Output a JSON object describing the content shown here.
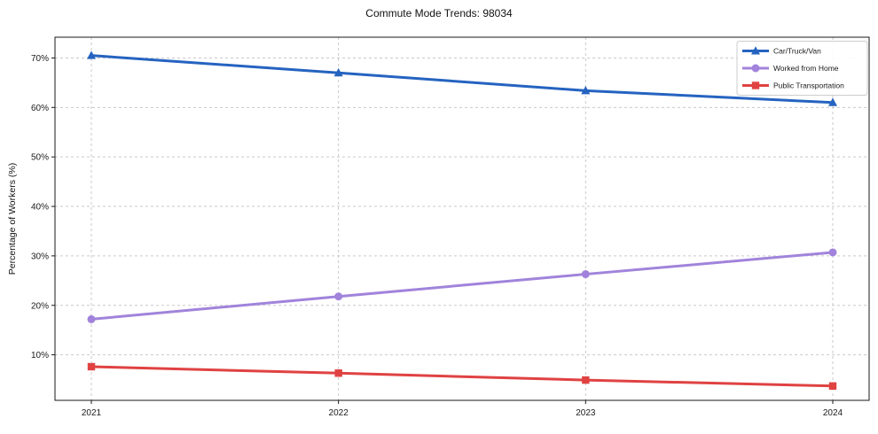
{
  "chart_data": {
    "type": "line",
    "title": "Commute Mode Trends: 98034",
    "xlabel": "",
    "ylabel": "Percentage of Workers (%)",
    "categories": [
      "2021",
      "2022",
      "2023",
      "2024"
    ],
    "series": [
      {
        "name": "Car/Truck/Van",
        "color": "#2563c0",
        "marker": "triangle",
        "values": [
          70.5,
          67.0,
          63.4,
          61.0
        ]
      },
      {
        "name": "Worked from Home",
        "color": "#a183db",
        "marker": "circle",
        "values": [
          17.2,
          21.8,
          26.3,
          30.7
        ]
      },
      {
        "name": "Public Transportation",
        "color": "#e04242",
        "marker": "square",
        "values": [
          7.6,
          6.3,
          4.9,
          3.7
        ]
      }
    ],
    "ylim": [
      0.8,
      74.2
    ],
    "yticks": [
      10,
      20,
      30,
      40,
      50,
      60,
      70
    ],
    "ytick_labels": [
      "10%",
      "20%",
      "30%",
      "40%",
      "50%",
      "60%",
      "70%"
    ],
    "grid": true,
    "legend_position": "upper right",
    "colors": {
      "grid": "#c9c9c9",
      "spine": "#1a1a1a",
      "tick_text": "#1a1a1a",
      "legend_border": "#cccccc",
      "legend_bg": "#ffffff"
    }
  }
}
